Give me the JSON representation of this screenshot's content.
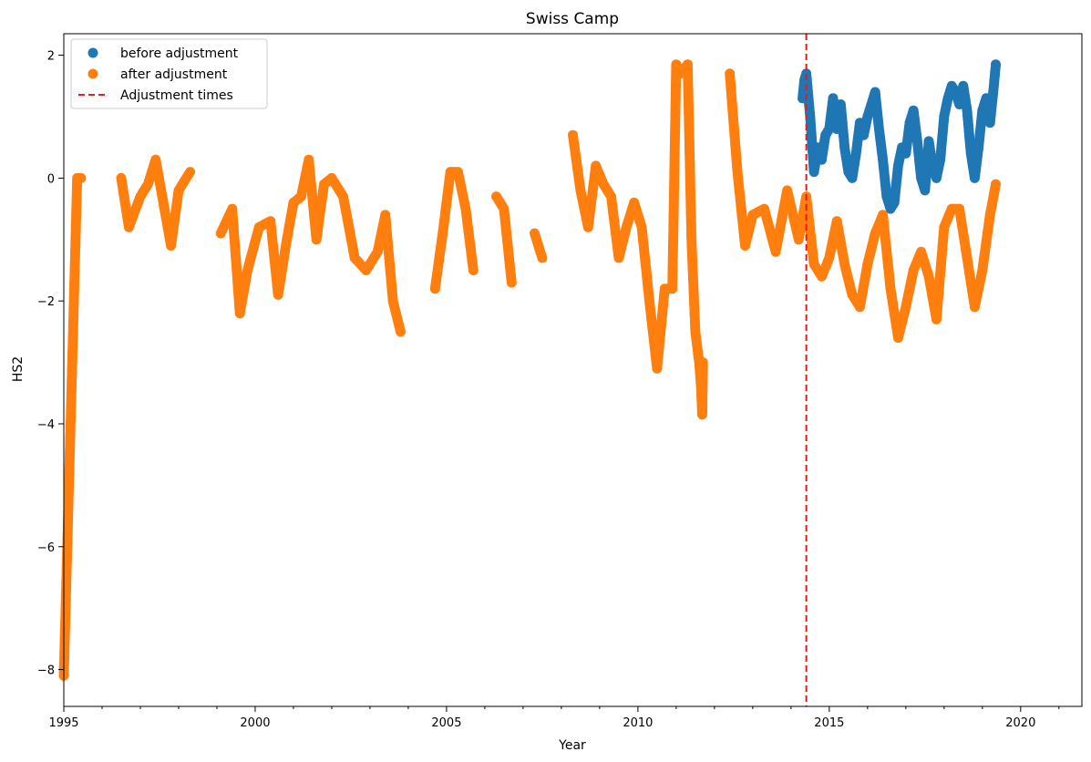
{
  "chart_data": {
    "type": "scatter",
    "title": "Swiss Camp",
    "xlabel": "Year",
    "ylabel": "HS2",
    "xlim": [
      1995.0,
      2021.6
    ],
    "ylim": [
      -8.6,
      2.35
    ],
    "x_ticks": [
      1995,
      2000,
      2005,
      2010,
      2015,
      2020
    ],
    "y_ticks": [
      2,
      0,
      -2,
      -4,
      -6,
      -8
    ],
    "y_tick_labels": [
      "2",
      "0",
      "−2",
      "−4",
      "−6",
      "−8"
    ],
    "grid": false,
    "legend_placement": "top-left",
    "adjustment_times": [
      2014.4
    ],
    "series": [
      {
        "name": "before adjustment",
        "color": "#1f77b4",
        "marker": "circle",
        "x": [
          2014.3,
          2014.35,
          2014.4,
          2014.5,
          2014.6,
          2014.7,
          2014.8,
          2014.9,
          2015.0,
          2015.1,
          2015.2,
          2015.3,
          2015.4,
          2015.5,
          2015.6,
          2015.7,
          2015.8,
          2015.9,
          2016.0,
          2016.1,
          2016.2,
          2016.3,
          2016.4,
          2016.5,
          2016.6,
          2016.7,
          2016.8,
          2016.9,
          2017.0,
          2017.1,
          2017.2,
          2017.3,
          2017.4,
          2017.5,
          2017.6,
          2017.7,
          2017.8,
          2017.9,
          2018.0,
          2018.1,
          2018.2,
          2018.3,
          2018.4,
          2018.5,
          2018.6,
          2018.7,
          2018.8,
          2018.9,
          2019.0,
          2019.1,
          2019.2,
          2019.3,
          2019.35
        ],
        "y": [
          1.3,
          1.6,
          1.7,
          1.0,
          0.1,
          0.5,
          0.3,
          0.7,
          0.8,
          1.3,
          0.8,
          1.2,
          0.5,
          0.1,
          0.0,
          0.4,
          0.9,
          0.7,
          1.0,
          1.2,
          1.4,
          0.8,
          0.3,
          -0.3,
          -0.5,
          -0.4,
          0.2,
          0.5,
          0.4,
          0.9,
          1.1,
          0.6,
          0.0,
          -0.2,
          0.6,
          0.2,
          0.0,
          0.3,
          1.0,
          1.3,
          1.5,
          1.4,
          1.2,
          1.5,
          1.1,
          0.4,
          0.0,
          0.5,
          1.1,
          1.3,
          0.9,
          1.5,
          1.85
        ]
      },
      {
        "name": "after adjustment",
        "color": "#ff7f0e",
        "marker": "circle",
        "x": [
          1995.0,
          1995.35,
          1995.45,
          1996.5,
          1996.7,
          1997.0,
          1997.2,
          1997.4,
          1997.6,
          1997.8,
          1998.0,
          1998.3,
          1999.1,
          1999.4,
          1999.6,
          1999.8,
          2000.1,
          2000.4,
          2000.6,
          2000.8,
          2001.0,
          2001.2,
          2001.4,
          2001.6,
          2001.8,
          2002.0,
          2002.3,
          2002.6,
          2002.9,
          2003.2,
          2003.4,
          2003.6,
          2003.8,
          2004.7,
          2004.9,
          2005.1,
          2005.3,
          2005.5,
          2005.7,
          2006.3,
          2006.5,
          2006.7,
          2007.3,
          2007.5,
          2008.3,
          2008.5,
          2008.7,
          2008.9,
          2009.1,
          2009.3,
          2009.5,
          2009.7,
          2009.9,
          2010.1,
          2010.3,
          2010.5,
          2010.7,
          2010.9,
          2011.0,
          2011.1,
          2011.3,
          2011.4,
          2011.5,
          2011.6,
          2011.65,
          2011.68,
          2011.7,
          2012.4,
          2012.6,
          2012.8,
          2013.0,
          2013.3,
          2013.6,
          2013.9,
          2014.2,
          2014.4,
          2014.6,
          2014.8,
          2015.0,
          2015.2,
          2015.4,
          2015.6,
          2015.8,
          2016.0,
          2016.2,
          2016.4,
          2016.6,
          2016.8,
          2017.0,
          2017.2,
          2017.4,
          2017.6,
          2017.8,
          2018.0,
          2018.2,
          2018.4,
          2018.6,
          2018.8,
          2019.0,
          2019.2,
          2019.35
        ],
        "y": [
          -8.1,
          0.0,
          0.0,
          0.0,
          -0.8,
          -0.3,
          -0.1,
          0.3,
          -0.4,
          -1.1,
          -0.2,
          0.1,
          -0.9,
          -0.5,
          -2.2,
          -1.5,
          -0.8,
          -0.7,
          -1.9,
          -1.1,
          -0.4,
          -0.3,
          0.3,
          -1.0,
          -0.1,
          0.0,
          -0.3,
          -1.3,
          -1.5,
          -1.2,
          -0.6,
          -2.0,
          -2.5,
          -1.8,
          -0.9,
          0.1,
          0.1,
          -0.5,
          -1.5,
          -0.3,
          -0.5,
          -1.7,
          -0.9,
          -1.3,
          0.7,
          -0.2,
          -0.8,
          0.2,
          -0.1,
          -0.3,
          -1.3,
          -0.8,
          -0.4,
          -0.8,
          -2.0,
          -3.1,
          -1.8,
          -1.8,
          1.85,
          1.7,
          1.85,
          -1.0,
          -2.5,
          -3.0,
          -3.4,
          -3.85,
          -3.0,
          1.7,
          0.1,
          -1.1,
          -0.6,
          -0.5,
          -1.2,
          -0.2,
          -1.0,
          -0.3,
          -1.4,
          -1.6,
          -1.3,
          -0.7,
          -1.4,
          -1.9,
          -2.1,
          -1.4,
          -0.9,
          -0.6,
          -1.8,
          -2.6,
          -2.1,
          -1.5,
          -1.2,
          -1.6,
          -2.3,
          -0.8,
          -0.5,
          -0.5,
          -1.3,
          -2.1,
          -1.5,
          -0.6,
          -0.1
        ]
      }
    ],
    "legend": [
      {
        "label": "before adjustment",
        "kind": "marker",
        "color": "#1f77b4"
      },
      {
        "label": "after adjustment",
        "kind": "marker",
        "color": "#ff7f0e"
      },
      {
        "label": "Adjustment times",
        "kind": "dashed-line",
        "color": "#d62728"
      }
    ]
  }
}
